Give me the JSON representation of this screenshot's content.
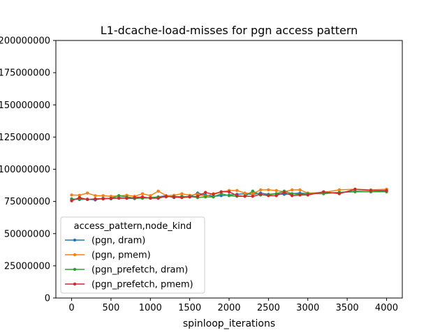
{
  "chart_data": {
    "type": "line",
    "title": "L1-dcache-load-misses for pgn access pattern",
    "xlabel": "spinloop_iterations",
    "ylabel": "",
    "xlim": [
      -200,
      4200
    ],
    "ylim": [
      0,
      200000000
    ],
    "xticks": [
      0,
      500,
      1000,
      1500,
      2000,
      2500,
      3000,
      3500,
      4000
    ],
    "xtick_labels": [
      "0",
      "500",
      "1000",
      "1500",
      "2000",
      "2500",
      "3000",
      "3500",
      "4000"
    ],
    "yticks": [
      0,
      25000000,
      50000000,
      75000000,
      100000000,
      125000000,
      150000000,
      175000000,
      200000000
    ],
    "ytick_labels": [
      "0",
      "25000000",
      "50000000",
      "75000000",
      "100000000",
      "125000000",
      "150000000",
      "175000000",
      "200000000"
    ],
    "grid": false,
    "legend": {
      "title": "access_pattern,node_kind",
      "placement": "lower-left"
    },
    "x": [
      0,
      100,
      200,
      300,
      400,
      500,
      600,
      700,
      800,
      900,
      1000,
      1100,
      1200,
      1300,
      1400,
      1500,
      1600,
      1700,
      1800,
      1900,
      2000,
      2100,
      2200,
      2300,
      2400,
      2500,
      2600,
      2700,
      2800,
      2900,
      3000,
      3200,
      3400,
      3600,
      3800,
      4000
    ],
    "series": [
      {
        "name": "(pgn, dram)",
        "color": "#1f77b4",
        "values": [
          77000000,
          76500000,
          76800000,
          76200000,
          77500000,
          77000000,
          78000000,
          77500000,
          77200000,
          77800000,
          78000000,
          78500000,
          79500000,
          78000000,
          79000000,
          78500000,
          81500000,
          80000000,
          79000000,
          79500000,
          80000000,
          80500000,
          81000000,
          80500000,
          81500000,
          80500000,
          81000000,
          80500000,
          81000000,
          81500000,
          81000000,
          81500000,
          82000000,
          83000000,
          82500000,
          83000000
        ]
      },
      {
        "name": "(pgn, pmem)",
        "color": "#ff7f0e",
        "values": [
          80000000,
          79800000,
          81500000,
          79500000,
          79500000,
          79000000,
          79300000,
          79800000,
          79000000,
          81000000,
          79500000,
          83000000,
          79500000,
          79800000,
          81000000,
          79800000,
          80500000,
          79000000,
          81000000,
          82500000,
          83500000,
          83500000,
          81500000,
          81000000,
          84000000,
          84000000,
          83500000,
          82500000,
          84000000,
          84000000,
          81500000,
          82000000,
          84000000,
          84500000,
          84000000,
          84500000
        ]
      },
      {
        "name": "(pgn_prefetch, dram)",
        "color": "#2ca02c",
        "values": [
          76500000,
          77000000,
          76500000,
          77000000,
          77000000,
          77500000,
          79500000,
          78500000,
          77500000,
          77500000,
          77800000,
          78500000,
          78500000,
          79000000,
          78500000,
          79000000,
          78000000,
          78500000,
          78500000,
          81000000,
          79500000,
          79000000,
          79000000,
          83000000,
          80000000,
          80000000,
          81000000,
          83000000,
          81000000,
          80500000,
          81000000,
          81000000,
          82000000,
          82500000,
          82500000,
          82500000
        ]
      },
      {
        "name": "(pgn_prefetch, pmem)",
        "color": "#d62728",
        "values": [
          75500000,
          78000000,
          76500000,
          77000000,
          77000000,
          77500000,
          77500000,
          77500000,
          78000000,
          78500000,
          77500000,
          77500000,
          79000000,
          78500000,
          78000000,
          78500000,
          79000000,
          82000000,
          80500000,
          82500000,
          82500000,
          79500000,
          79000000,
          79000000,
          80500000,
          79500000,
          79500000,
          82000000,
          79500000,
          80000000,
          80000000,
          82500000,
          81000000,
          84500000,
          83500000,
          83500000
        ]
      }
    ]
  }
}
